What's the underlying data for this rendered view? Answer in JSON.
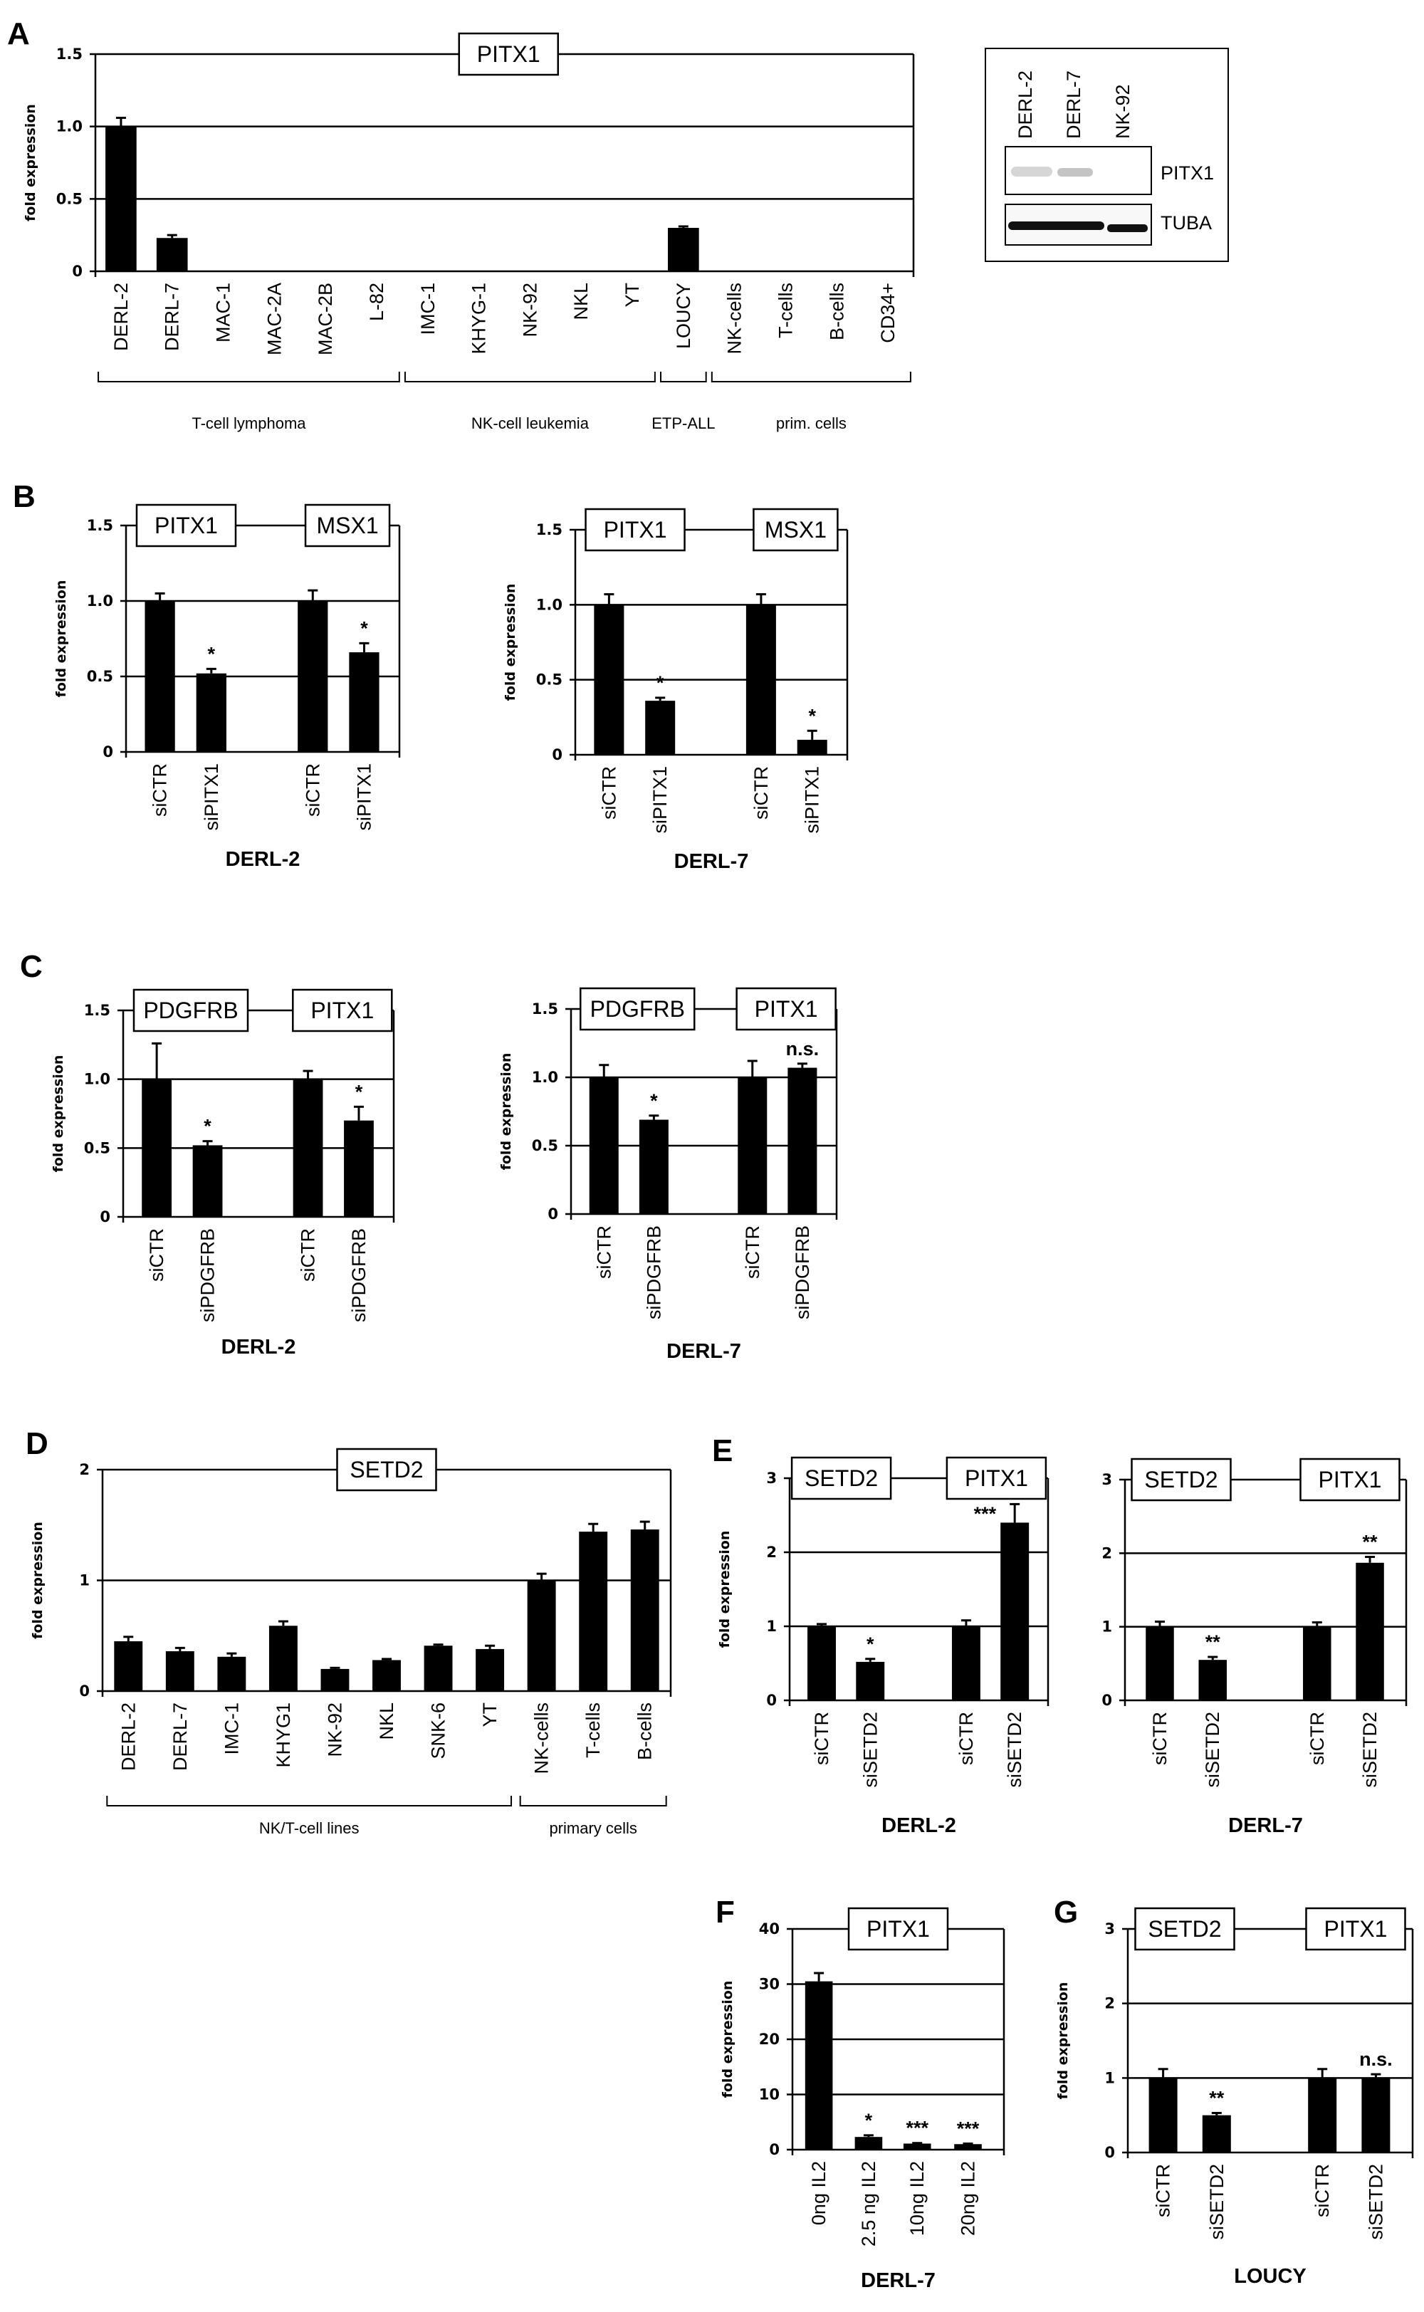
{
  "panel_letters": [
    "A",
    "B",
    "C",
    "D",
    "E",
    "F",
    "G"
  ],
  "western_blot": {
    "lanes": [
      "DERL-2",
      "DERL-7",
      "NK-92"
    ],
    "bands": [
      "PITX1",
      "TUBA"
    ]
  },
  "chart_data": [
    {
      "type": "bar",
      "panel": "A",
      "gene_labels": [
        "PITX1"
      ],
      "ylabel": "fold expression",
      "ylim": [
        0,
        1.5
      ],
      "yticks": [
        "0",
        "0.5",
        "1.0",
        "1.5"
      ],
      "ytick_values": [
        0,
        0.5,
        1.0,
        1.5
      ],
      "categories": [
        "DERL-2",
        "DERL-7",
        "MAC-1",
        "MAC-2A",
        "MAC-2B",
        "L-82",
        "IMC-1",
        "KHYG-1",
        "NK-92",
        "NKL",
        "YT",
        "LOUCY",
        "NK-cells",
        "T-cells",
        "B-cells",
        "CD34+"
      ],
      "values": [
        1.0,
        0.23,
        0,
        0,
        0,
        0,
        0,
        0,
        0,
        0,
        0,
        0.3,
        0,
        0,
        0,
        0
      ],
      "errors": [
        0.06,
        0.02,
        0,
        0,
        0,
        0,
        0,
        0,
        0,
        0,
        0,
        0.01,
        0,
        0,
        0,
        0
      ],
      "significance": [],
      "groups": [
        {
          "label": "T-cell lymphoma",
          "from": 0,
          "to": 5
        },
        {
          "label": "NK-cell leukemia",
          "from": 6,
          "to": 10
        },
        {
          "label": "ETP-ALL",
          "from": 11,
          "to": 11
        },
        {
          "label": "prim. cells",
          "from": 12,
          "to": 15
        }
      ],
      "xlabel": "",
      "grid": true
    },
    {
      "type": "bar",
      "panel": "B",
      "gene_labels": [
        "PITX1",
        "MSX1"
      ],
      "ylabel": "fold expression",
      "ylim": [
        0,
        1.5
      ],
      "yticks": [
        "0",
        "0.5",
        "1.0",
        "1.5"
      ],
      "ytick_values": [
        0,
        0.5,
        1.0,
        1.5
      ],
      "categories": [
        "siCTR",
        "siPITX1",
        "siCTR",
        "siPITX1"
      ],
      "values": [
        1.0,
        0.52,
        1.0,
        0.66
      ],
      "errors": [
        0.05,
        0.03,
        0.07,
        0.06
      ],
      "significance": [
        "",
        "*",
        "",
        "*"
      ],
      "xlabel": "DERL-2",
      "grid": true
    },
    {
      "type": "bar",
      "panel": "B",
      "gene_labels": [
        "PITX1",
        "MSX1"
      ],
      "ylabel": "fold expression",
      "ylim": [
        0,
        1.5
      ],
      "yticks": [
        "0",
        "0.5",
        "1.0",
        "1.5"
      ],
      "ytick_values": [
        0,
        0.5,
        1.0,
        1.5
      ],
      "categories": [
        "siCTR",
        "siPITX1",
        "siCTR",
        "siPITX1"
      ],
      "values": [
        1.0,
        0.36,
        1.0,
        0.1
      ],
      "errors": [
        0.07,
        0.02,
        0.07,
        0.06
      ],
      "significance": [
        "",
        "*",
        "",
        "*"
      ],
      "xlabel": "DERL-7",
      "grid": true
    },
    {
      "type": "bar",
      "panel": "C",
      "gene_labels": [
        "PDGFRB",
        "PITX1"
      ],
      "ylabel": "fold expression",
      "ylim": [
        0,
        1.5
      ],
      "yticks": [
        "0",
        "0.5",
        "1.0",
        "1.5"
      ],
      "ytick_values": [
        0,
        0.5,
        1.0,
        1.5
      ],
      "categories": [
        "siCTR",
        "siPDGFRB",
        "siCTR",
        "siPDGFRB"
      ],
      "values": [
        1.0,
        0.52,
        1.0,
        0.7
      ],
      "errors": [
        0.26,
        0.03,
        0.06,
        0.1
      ],
      "significance": [
        "",
        "*",
        "",
        "*"
      ],
      "xlabel": "DERL-2",
      "grid": true
    },
    {
      "type": "bar",
      "panel": "C",
      "gene_labels": [
        "PDGFRB",
        "PITX1"
      ],
      "ylabel": "fold expression",
      "ylim": [
        0,
        1.5
      ],
      "yticks": [
        "0",
        "0.5",
        "1.0",
        "1.5"
      ],
      "ytick_values": [
        0,
        0.5,
        1.0,
        1.5
      ],
      "categories": [
        "siCTR",
        "siPDGFRB",
        "siCTR",
        "siPDGFRB"
      ],
      "values": [
        1.0,
        0.69,
        1.0,
        1.07
      ],
      "errors": [
        0.09,
        0.03,
        0.12,
        0.03
      ],
      "significance": [
        "",
        "*",
        "",
        "n.s."
      ],
      "xlabel": "DERL-7",
      "grid": true
    },
    {
      "type": "bar",
      "panel": "D",
      "gene_labels": [
        "SETD2"
      ],
      "ylabel": "fold expression",
      "ylim": [
        0,
        2
      ],
      "yticks": [
        "0",
        "1",
        "2"
      ],
      "ytick_values": [
        0,
        1,
        2
      ],
      "categories": [
        "DERL-2",
        "DERL-7",
        "IMC-1",
        "KHYG1",
        "NK-92",
        "NKL",
        "SNK-6",
        "YT",
        "NK-cells",
        "T-cells",
        "B-cells"
      ],
      "values": [
        0.45,
        0.36,
        0.31,
        0.59,
        0.2,
        0.28,
        0.41,
        0.38,
        1.0,
        1.44,
        1.46
      ],
      "errors": [
        0.04,
        0.03,
        0.03,
        0.04,
        0.01,
        0.01,
        0.01,
        0.03,
        0.06,
        0.07,
        0.07
      ],
      "significance": [],
      "groups": [
        {
          "label": "NK/T-cell lines",
          "from": 0,
          "to": 7
        },
        {
          "label": "primary cells",
          "from": 8,
          "to": 10
        }
      ],
      "xlabel": "",
      "grid": true
    },
    {
      "type": "bar",
      "panel": "E",
      "gene_labels": [
        "SETD2",
        "PITX1"
      ],
      "ylabel": "fold expression",
      "ylim": [
        0,
        3
      ],
      "yticks": [
        "0",
        "1",
        "2",
        "3"
      ],
      "ytick_values": [
        0,
        1,
        2,
        3
      ],
      "categories": [
        "siCTR",
        "siSETD2",
        "siCTR",
        "siSETD2"
      ],
      "values": [
        1.0,
        0.52,
        1.0,
        2.4
      ],
      "errors": [
        0.03,
        0.04,
        0.08,
        0.25
      ],
      "significance": [
        "",
        "*",
        "",
        "***"
      ],
      "xlabel": "DERL-2",
      "grid": true
    },
    {
      "type": "bar",
      "panel": "E",
      "gene_labels": [
        "SETD2",
        "PITX1"
      ],
      "ylabel": "",
      "ylim": [
        0,
        3
      ],
      "yticks": [
        "0",
        "1",
        "2",
        "3"
      ],
      "ytick_values": [
        0,
        1,
        2,
        3
      ],
      "categories": [
        "siCTR",
        "siSETD2",
        "siCTR",
        "siSETD2"
      ],
      "values": [
        1.0,
        0.55,
        1.0,
        1.87
      ],
      "errors": [
        0.07,
        0.04,
        0.06,
        0.08
      ],
      "significance": [
        "",
        "**",
        "",
        "**"
      ],
      "xlabel": "DERL-7",
      "grid": true
    },
    {
      "type": "bar",
      "panel": "F",
      "gene_labels": [
        "PITX1"
      ],
      "ylabel": "fold expression",
      "ylim": [
        0,
        40
      ],
      "yticks": [
        "0",
        "10",
        "20",
        "30",
        "40"
      ],
      "ytick_values": [
        0,
        10,
        20,
        30,
        40
      ],
      "categories": [
        "0ng IL2",
        "2.5 ng IL2",
        "10ng IL2",
        "20ng IL2"
      ],
      "values": [
        30.5,
        2.3,
        1.1,
        1.0
      ],
      "errors": [
        1.5,
        0.3,
        0.1,
        0.1
      ],
      "significance": [
        "",
        "*",
        "***",
        "***"
      ],
      "xlabel": "DERL-7",
      "grid": true
    },
    {
      "type": "bar",
      "panel": "G",
      "gene_labels": [
        "SETD2",
        "PITX1"
      ],
      "ylabel": "fold expression",
      "ylim": [
        0,
        3
      ],
      "yticks": [
        "0",
        "1",
        "2",
        "3"
      ],
      "ytick_values": [
        0,
        1,
        2,
        3
      ],
      "categories": [
        "siCTR",
        "siSETD2",
        "siCTR",
        "siSETD2"
      ],
      "values": [
        1.0,
        0.5,
        1.0,
        1.0
      ],
      "errors": [
        0.12,
        0.03,
        0.12,
        0.05
      ],
      "significance": [
        "",
        "**",
        "",
        "n.s."
      ],
      "xlabel": "LOUCY",
      "grid": true
    }
  ]
}
